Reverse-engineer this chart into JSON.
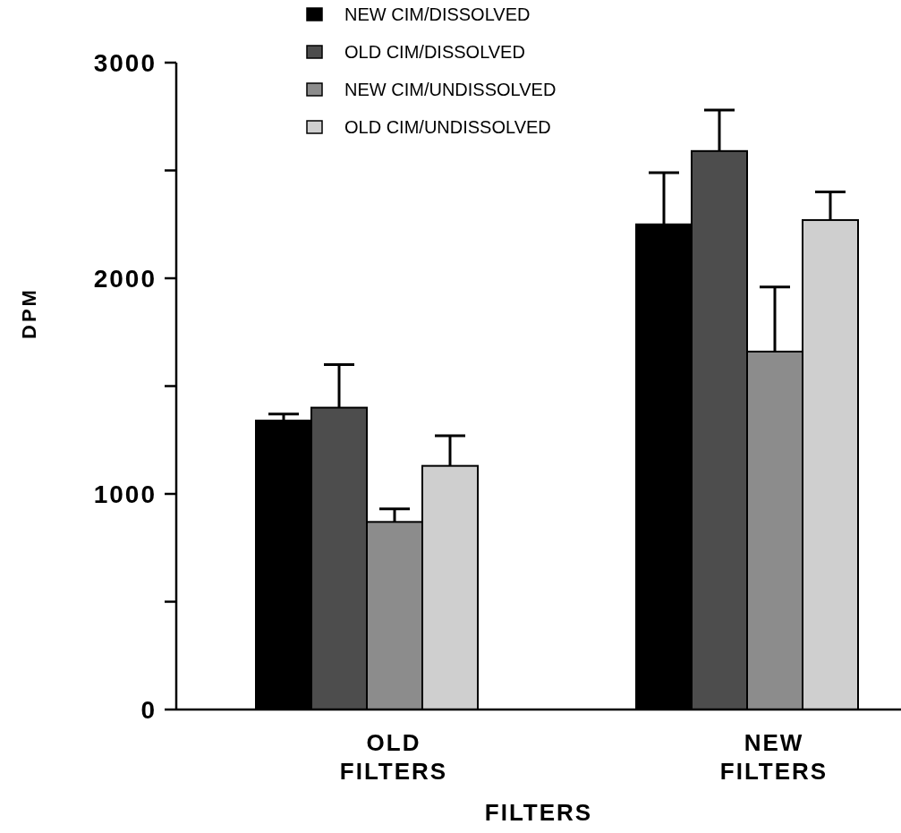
{
  "chart_data": {
    "type": "bar",
    "xlabel": "FILTERS",
    "ylabel": "DPM",
    "categories": [
      "OLD FILTERS",
      "NEW FILTERS"
    ],
    "series": [
      {
        "name": "NEW CIM/DISSOLVED",
        "color": "#000000",
        "values": [
          1340,
          2250
        ],
        "errors": [
          [
            1340,
            1370
          ],
          [
            2250,
            2490
          ]
        ]
      },
      {
        "name": "OLD CIM/DISSOLVED",
        "color": "#4d4d4d",
        "values": [
          1400,
          2590
        ],
        "errors": [
          [
            1400,
            1600
          ],
          [
            2590,
            2780
          ]
        ]
      },
      {
        "name": "NEW CIM/UNDISSOLVED",
        "color": "#8c8c8c",
        "values": [
          870,
          1660
        ],
        "errors": [
          [
            870,
            930
          ],
          [
            1660,
            1960
          ]
        ]
      },
      {
        "name": "OLD CIM/UNDISSOLVED",
        "color": "#cfcfcf",
        "values": [
          1130,
          2270
        ],
        "errors": [
          [
            1130,
            1270
          ],
          [
            2270,
            2400
          ]
        ]
      }
    ],
    "ylim": [
      0,
      3000
    ],
    "yticks": [
      0,
      {
        "value": 500,
        "label": null
      },
      1000,
      {
        "value": 1500,
        "label": null
      },
      2000,
      {
        "value": 2500,
        "label": null
      },
      3000
    ],
    "legend": "top"
  }
}
